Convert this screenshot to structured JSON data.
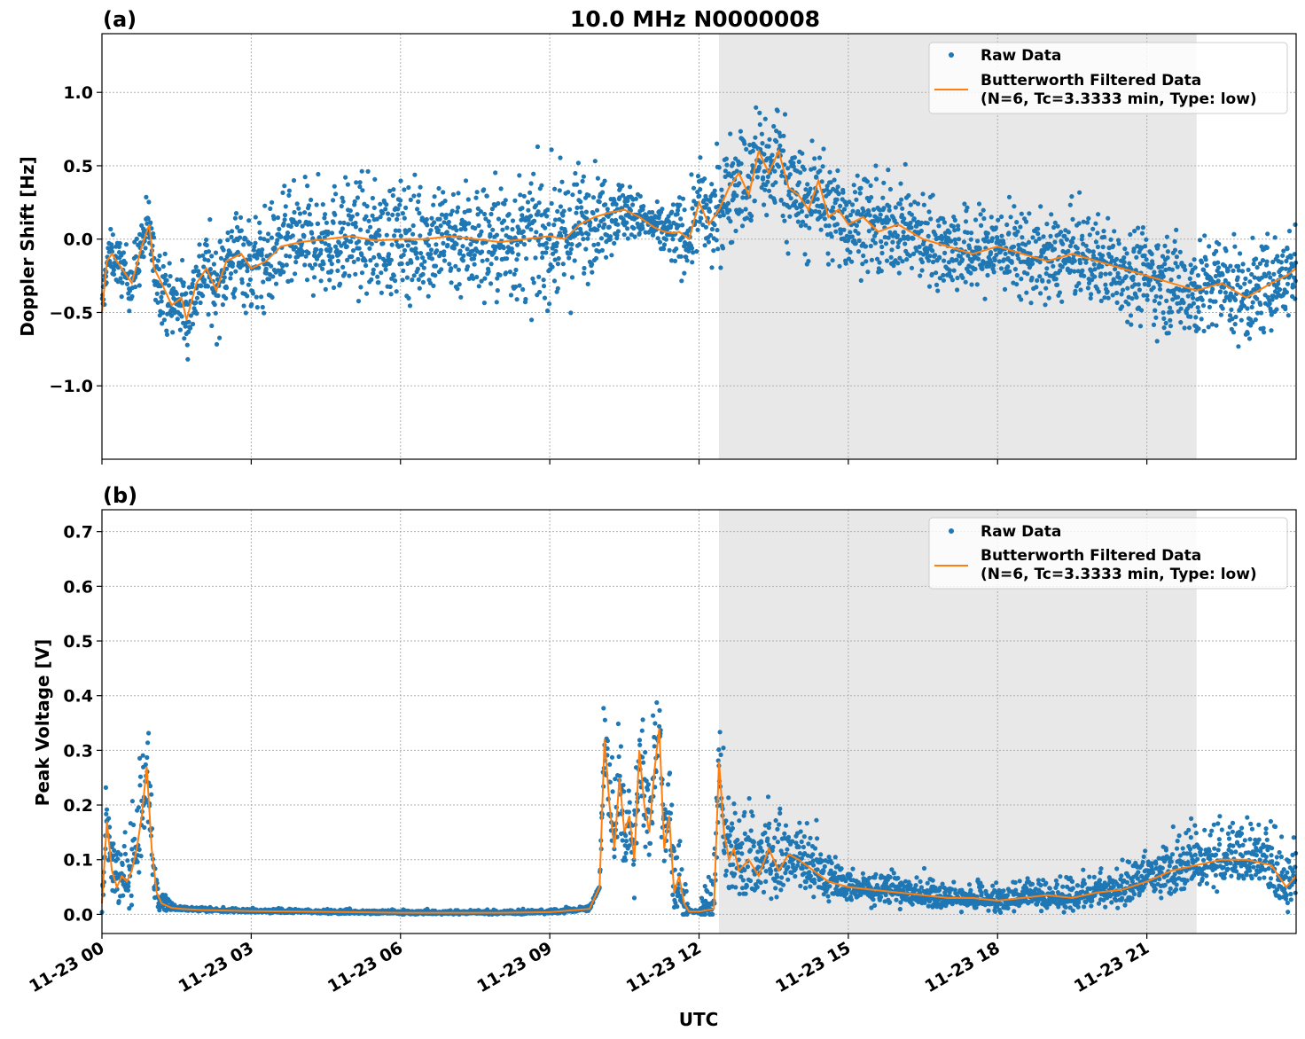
{
  "figure": {
    "title": "10.0 MHz N0000008",
    "xlabel": "UTC",
    "x_tick_labels": [
      "11-23 00",
      "11-23 03",
      "11-23 06",
      "11-23 09",
      "11-23 12",
      "11-23 15",
      "11-23 18",
      "11-23 21"
    ],
    "legend": {
      "raw": "Raw Data",
      "filtered_line1": "Butterworth Filtered Data",
      "filtered_line2": "(N=6, Tc=3.3333 min, Type: low)"
    },
    "colors": {
      "raw": "#1f77b4",
      "filtered": "#ff7f0e",
      "shade": "#e8e8e8"
    }
  },
  "chart_data": [
    {
      "type": "scatter",
      "panel_label": "(a)",
      "title": "10.0 MHz N0000008",
      "xlabel": "",
      "ylabel": "Doppler Shift [Hz]",
      "xlim_hours": [
        0,
        24
      ],
      "ylim": [
        -1.5,
        1.4
      ],
      "yticks": [
        -1.0,
        -0.5,
        0.0,
        0.5,
        1.0
      ],
      "ytick_labels": [
        "−1.0",
        "−0.5",
        "0.0",
        "0.5",
        "1.0"
      ],
      "shaded_span_hours": [
        12.4,
        22.0
      ],
      "legend_position": "upper right",
      "grid": true,
      "series": [
        {
          "name": "Raw Data",
          "type": "scatter",
          "spread_hours": [
            0,
            1.3,
            3.0,
            9.5,
            10.0,
            11.0,
            11.6,
            12.0,
            12.4,
            13.2,
            14.5,
            17.0,
            20.0,
            22.0,
            24.0
          ],
          "spread_hz": [
            0.15,
            0.25,
            0.35,
            0.45,
            0.3,
            0.12,
            0.25,
            0.3,
            0.35,
            0.4,
            0.35,
            0.3,
            0.3,
            0.35,
            0.3
          ]
        },
        {
          "name": "Butterworth Filtered Data (N=6, Tc=3.3333 min, Type: low)",
          "type": "line",
          "x_hours": [
            0,
            0.1,
            0.2,
            0.4,
            0.6,
            0.8,
            0.95,
            1.05,
            1.2,
            1.4,
            1.6,
            1.7,
            1.9,
            2.1,
            2.3,
            2.5,
            2.8,
            3.0,
            3.3,
            3.6,
            4.0,
            4.5,
            5.0,
            5.5,
            6.0,
            6.5,
            7.0,
            7.5,
            8.0,
            8.5,
            9.0,
            9.3,
            9.6,
            9.9,
            10.2,
            10.5,
            10.8,
            11.1,
            11.3,
            11.5,
            11.6,
            11.8,
            12.0,
            12.2,
            12.4,
            12.6,
            12.8,
            13.0,
            13.2,
            13.4,
            13.6,
            13.8,
            14.0,
            14.2,
            14.4,
            14.6,
            14.8,
            15.0,
            15.3,
            15.6,
            16.0,
            16.5,
            17.0,
            17.5,
            18.0,
            18.5,
            19.0,
            19.5,
            20.0,
            20.5,
            21.0,
            21.5,
            22.0,
            22.5,
            23.0,
            23.5,
            23.8,
            24.0
          ],
          "y_hz": [
            -0.5,
            -0.15,
            -0.1,
            -0.2,
            -0.3,
            -0.05,
            0.1,
            -0.2,
            -0.3,
            -0.45,
            -0.4,
            -0.55,
            -0.3,
            -0.2,
            -0.35,
            -0.15,
            -0.1,
            -0.2,
            -0.15,
            -0.05,
            -0.02,
            0.0,
            0.02,
            -0.01,
            0.0,
            0.0,
            0.02,
            0.0,
            -0.02,
            0.0,
            0.02,
            0.0,
            0.1,
            0.15,
            0.18,
            0.2,
            0.15,
            0.08,
            0.05,
            0.04,
            0.05,
            0.0,
            0.25,
            0.1,
            0.2,
            0.35,
            0.45,
            0.3,
            0.6,
            0.45,
            0.6,
            0.35,
            0.3,
            0.2,
            0.4,
            0.15,
            0.2,
            0.1,
            0.15,
            0.05,
            0.1,
            0.0,
            -0.05,
            -0.1,
            -0.05,
            -0.1,
            -0.15,
            -0.1,
            -0.15,
            -0.2,
            -0.25,
            -0.3,
            -0.35,
            -0.3,
            -0.4,
            -0.3,
            -0.25,
            -0.2
          ]
        }
      ]
    },
    {
      "type": "scatter",
      "panel_label": "(b)",
      "xlabel": "UTC",
      "ylabel": "Peak Voltage [V]",
      "xlim_hours": [
        0,
        24
      ],
      "ylim": [
        -0.035,
        0.74
      ],
      "yticks": [
        0.0,
        0.1,
        0.2,
        0.3,
        0.4,
        0.5,
        0.6,
        0.7
      ],
      "ytick_labels": [
        "0.0",
        "0.1",
        "0.2",
        "0.3",
        "0.4",
        "0.5",
        "0.6",
        "0.7"
      ],
      "shaded_span_hours": [
        12.4,
        22.0
      ],
      "legend_position": "upper right",
      "grid": true,
      "series": [
        {
          "name": "Raw Data",
          "type": "scatter",
          "spread_hours": [
            0,
            0.5,
            0.9,
            1.2,
            1.5,
            10.0,
            10.1,
            11.6,
            11.8,
            12.0,
            12.4,
            13.5,
            14.0,
            15.0,
            17.0,
            20.0,
            22.0,
            24.0
          ],
          "spread_v": [
            0.1,
            0.08,
            0.12,
            0.02,
            0.005,
            0.005,
            0.12,
            0.12,
            0.004,
            0.004,
            0.12,
            0.1,
            0.08,
            0.04,
            0.03,
            0.04,
            0.07,
            0.08
          ]
        },
        {
          "name": "Butterworth Filtered Data (N=6, Tc=3.3333 min, Type: low)",
          "type": "line",
          "x_hours": [
            0,
            0.1,
            0.2,
            0.3,
            0.4,
            0.5,
            0.6,
            0.7,
            0.8,
            0.9,
            1.0,
            1.1,
            1.2,
            1.4,
            1.6,
            2.0,
            3.0,
            4.0,
            5.0,
            6.0,
            7.0,
            8.0,
            9.0,
            9.8,
            10.0,
            10.1,
            10.2,
            10.3,
            10.4,
            10.5,
            10.6,
            10.7,
            10.8,
            10.9,
            11.0,
            11.1,
            11.2,
            11.3,
            11.4,
            11.5,
            11.6,
            11.7,
            11.8,
            12.0,
            12.3,
            12.4,
            12.5,
            12.6,
            12.7,
            12.8,
            13.0,
            13.2,
            13.4,
            13.6,
            13.8,
            14.0,
            14.3,
            14.6,
            15.0,
            15.5,
            16.0,
            16.5,
            17.0,
            17.5,
            18.0,
            18.5,
            19.0,
            19.5,
            20.0,
            20.5,
            21.0,
            21.5,
            22.0,
            22.5,
            23.0,
            23.5,
            23.8,
            24.0
          ],
          "y_v": [
            0.02,
            0.17,
            0.08,
            0.05,
            0.07,
            0.06,
            0.08,
            0.12,
            0.18,
            0.27,
            0.12,
            0.04,
            0.02,
            0.012,
            0.01,
            0.008,
            0.006,
            0.005,
            0.004,
            0.003,
            0.003,
            0.003,
            0.004,
            0.01,
            0.05,
            0.32,
            0.2,
            0.12,
            0.25,
            0.15,
            0.18,
            0.1,
            0.3,
            0.2,
            0.15,
            0.26,
            0.34,
            0.12,
            0.18,
            0.04,
            0.07,
            0.02,
            0.005,
            0.005,
            0.01,
            0.28,
            0.15,
            0.1,
            0.12,
            0.08,
            0.1,
            0.07,
            0.12,
            0.08,
            0.11,
            0.1,
            0.08,
            0.06,
            0.05,
            0.045,
            0.04,
            0.035,
            0.03,
            0.03,
            0.025,
            0.03,
            0.035,
            0.03,
            0.04,
            0.045,
            0.06,
            0.08,
            0.09,
            0.1,
            0.1,
            0.09,
            0.05,
            0.07
          ]
        }
      ]
    }
  ]
}
